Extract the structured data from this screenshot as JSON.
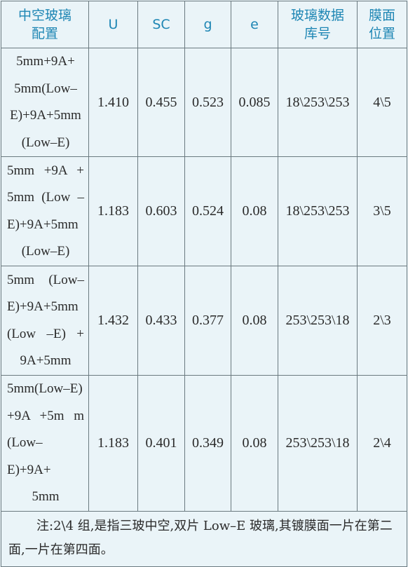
{
  "table": {
    "headers": [
      [
        "中空玻璃",
        "配置"
      ],
      [
        "U"
      ],
      [
        "SC"
      ],
      [
        "g"
      ],
      [
        "e"
      ],
      [
        "玻璃数据",
        "库号"
      ],
      [
        "膜面",
        "位置"
      ]
    ],
    "rows": [
      {
        "config": [
          "5mm+9A+",
          "5mm(Low–",
          "E)+9A+5mm",
          "(Low–E)"
        ],
        "U": "1.410",
        "SC": "0.455",
        "g": "0.523",
        "e": "0.085",
        "library": "18\\253\\253",
        "coating_position": "4\\5"
      },
      {
        "config": [
          "5mm +9A +",
          "5mm (Low –",
          "E)+9A+5mm",
          "(Low–E)"
        ],
        "U": "1.183",
        "SC": "0.603",
        "g": "0.524",
        "e": "0.08",
        "library": "18\\253\\253",
        "coating_position": "3\\5"
      },
      {
        "config": [
          "5mm (Low–",
          "E)+9A+5mm",
          "(Low –E) +",
          "9A+5mm"
        ],
        "U": "1.432",
        "SC": "0.433",
        "g": "0.377",
        "e": "0.08",
        "library": "253\\253\\18",
        "coating_position": "2\\3"
      },
      {
        "config": [
          "5mm(Low–E)",
          "+9A +5m m",
          "(Low–E)+9A+",
          "5mm"
        ],
        "U": "1.183",
        "SC": "0.401",
        "g": "0.349",
        "e": "0.08",
        "library": "253\\253\\18",
        "coating_position": "2\\4"
      }
    ],
    "note": "注:2\\4 组,是指三玻中空,双片 Low–E 玻璃,其镀膜面一片在第二面,一片在第四面。"
  }
}
